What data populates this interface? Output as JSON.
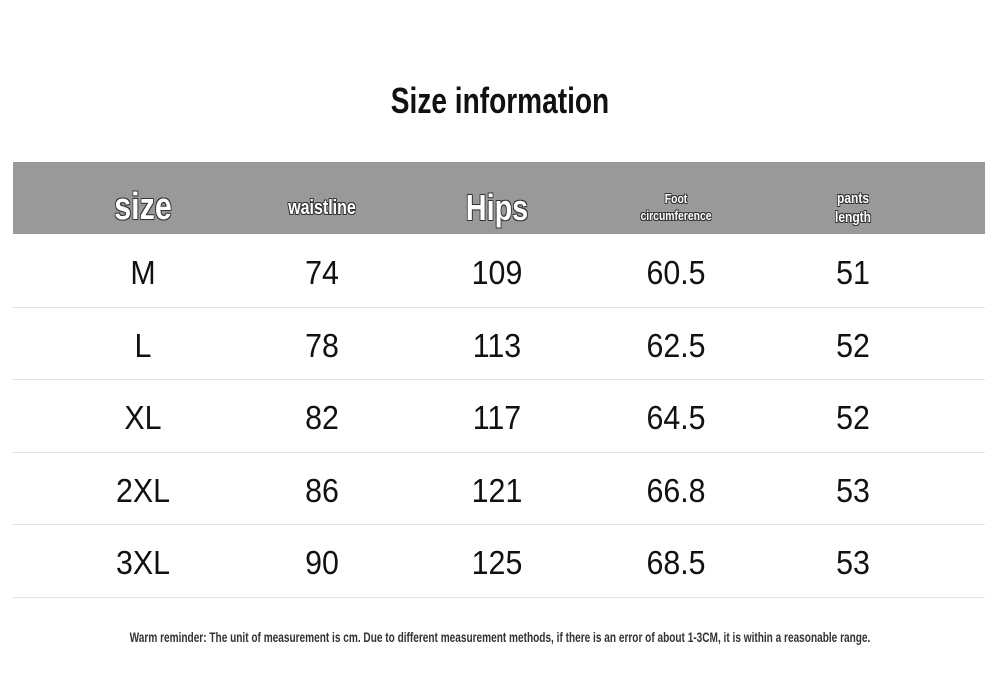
{
  "header": {
    "title": "Size information"
  },
  "table": {
    "columns": [
      "size",
      "waistline",
      "Hips",
      "Foot circumference",
      "pants length"
    ],
    "rows": [
      [
        "M",
        74,
        109,
        60.5,
        51
      ],
      [
        "L",
        78,
        113,
        62.5,
        52
      ],
      [
        "XL",
        82,
        117,
        64.5,
        52
      ],
      [
        "2XL",
        86,
        121,
        66.8,
        53
      ],
      [
        "3XL",
        90,
        125,
        68.5,
        53
      ]
    ]
  },
  "footer": {
    "note": "Warm reminder: The unit of measurement is cm. Due to different measurement methods, if there is an error of about 1-3CM, it is within a reasonable range."
  }
}
